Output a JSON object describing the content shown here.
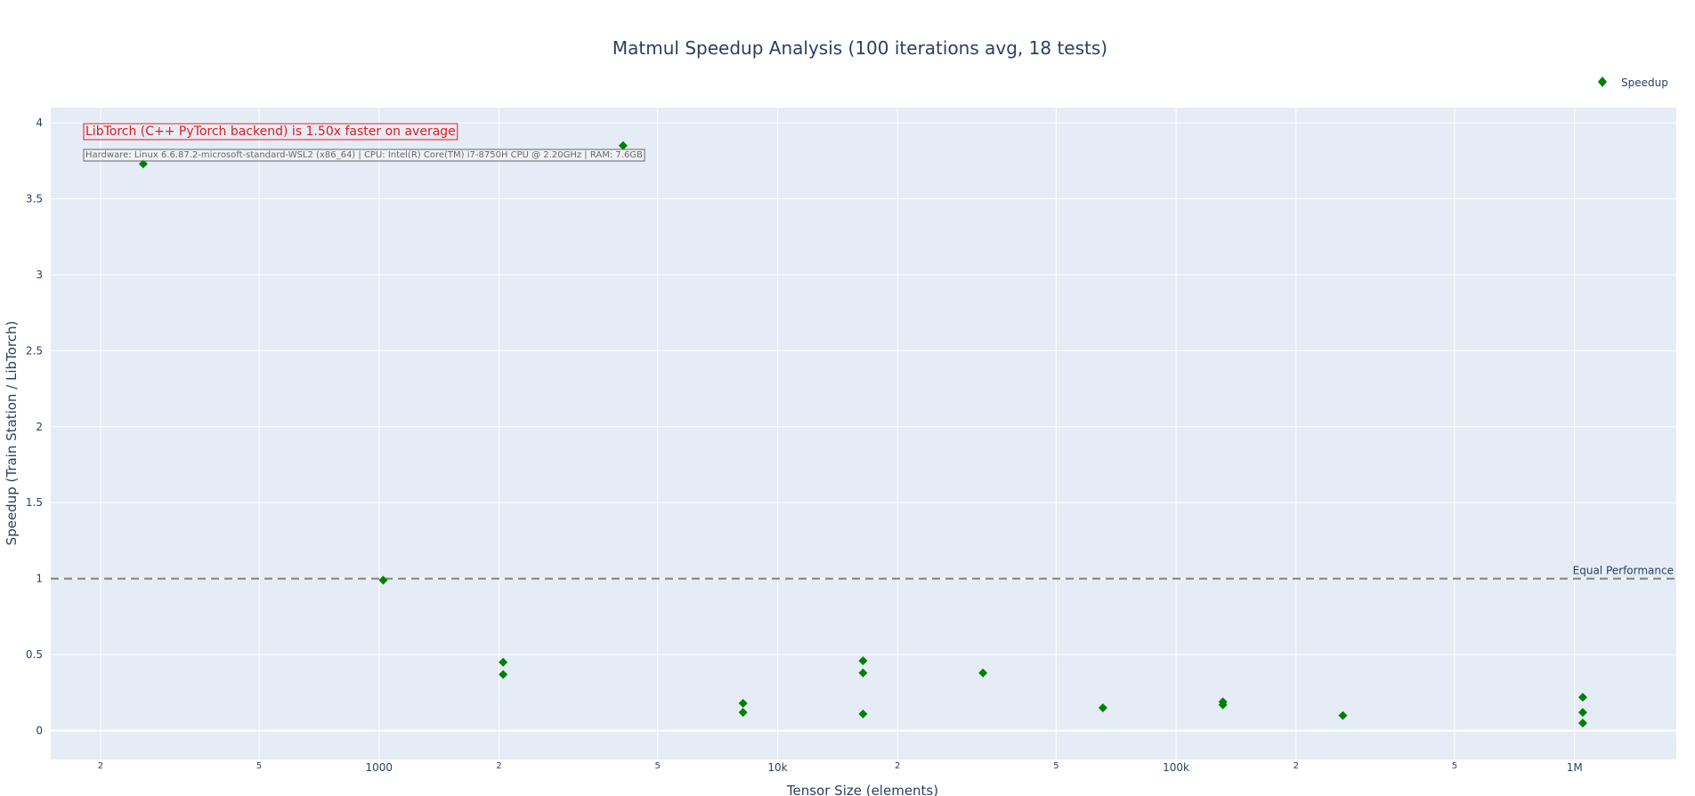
{
  "chart_data": {
    "type": "scatter",
    "title": "Matmul Speedup Analysis (100 iterations avg, 18 tests)",
    "xlabel": "Tensor Size (elements)",
    "ylabel": "Speedup (Train Station / LibTorch)",
    "x_scale": "log",
    "xlim": [
      150,
      1800000
    ],
    "ylim": [
      -0.19,
      4.1
    ],
    "y_ticks": [
      "0",
      "0.5",
      "1",
      "1.5",
      "2",
      "2.5",
      "3",
      "3.5",
      "4"
    ],
    "y_tick_values": [
      0,
      0.5,
      1,
      1.5,
      2,
      2.5,
      3,
      3.5,
      4
    ],
    "x_major_ticks": [
      {
        "value": 1000,
        "label": "1000"
      },
      {
        "value": 10000,
        "label": "10k"
      },
      {
        "value": 100000,
        "label": "100k"
      },
      {
        "value": 1000000,
        "label": "1M"
      }
    ],
    "x_minor_ticks": [
      {
        "value": 200,
        "label": "2"
      },
      {
        "value": 500,
        "label": "5"
      },
      {
        "value": 2000,
        "label": "2"
      },
      {
        "value": 5000,
        "label": "5"
      },
      {
        "value": 20000,
        "label": "2"
      },
      {
        "value": 50000,
        "label": "5"
      },
      {
        "value": 200000,
        "label": "2"
      },
      {
        "value": 500000,
        "label": "5"
      }
    ],
    "grid": true,
    "legend_position": "top-right",
    "series": [
      {
        "name": "Speedup",
        "marker": "diamond",
        "color": "#008000",
        "points": [
          {
            "x": 256,
            "y": 3.73
          },
          {
            "x": 1024,
            "y": 0.99
          },
          {
            "x": 2048,
            "y": 0.45
          },
          {
            "x": 2048,
            "y": 0.37
          },
          {
            "x": 4096,
            "y": 3.85
          },
          {
            "x": 8192,
            "y": 0.18
          },
          {
            "x": 8192,
            "y": 0.12
          },
          {
            "x": 16384,
            "y": 0.46
          },
          {
            "x": 16384,
            "y": 0.38
          },
          {
            "x": 16384,
            "y": 0.11
          },
          {
            "x": 32768,
            "y": 0.38
          },
          {
            "x": 65536,
            "y": 0.15
          },
          {
            "x": 131072,
            "y": 0.19
          },
          {
            "x": 131072,
            "y": 0.17
          },
          {
            "x": 262144,
            "y": 0.1
          },
          {
            "x": 1048576,
            "y": 0.22
          },
          {
            "x": 1048576,
            "y": 0.12
          },
          {
            "x": 1048576,
            "y": 0.05
          }
        ]
      }
    ],
    "reference_line": {
      "y": 1,
      "label": "Equal Performance",
      "color": "#808080",
      "style": "dashed"
    },
    "annotations": {
      "summary": "LibTorch (C++ PyTorch backend) is 1.50x faster on average",
      "hardware": "Hardware: Linux 6.6.87.2-microsoft-standard-WSL2 (x86_64) | CPU: Intel(R) Core(TM) i7-8750H CPU @ 2.20GHz | RAM: 7.6GB"
    },
    "colors": {
      "plot_background": "#e5ecf6",
      "gridline": "#ffffff",
      "text": "#2a3f5f",
      "summary_text": "#e31a1c",
      "hardware_text": "#666666"
    }
  }
}
